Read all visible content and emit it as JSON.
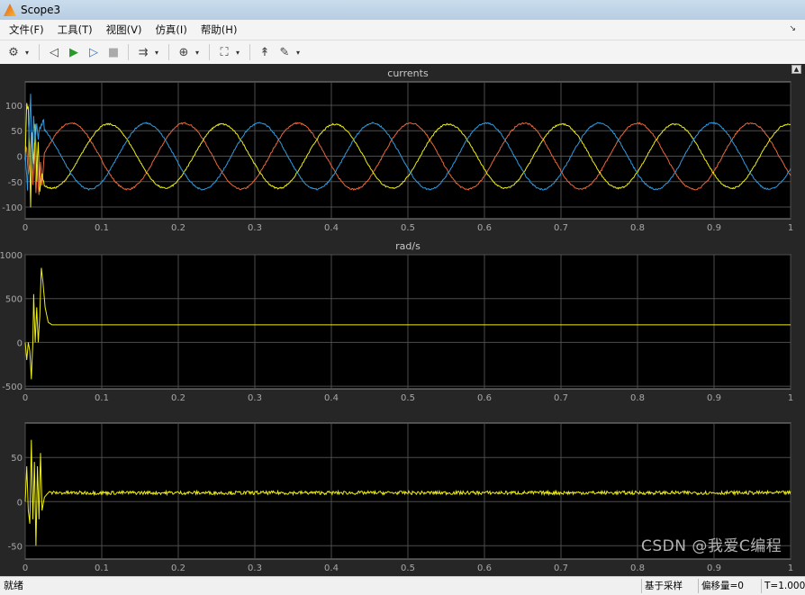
{
  "window": {
    "title": "Scope3"
  },
  "menu": [
    "文件(F)",
    "工具(T)",
    "视图(V)",
    "仿真(I)",
    "帮助(H)"
  ],
  "toolbar": [
    {
      "icon": "gear-icon",
      "glyph": "⚙",
      "dropdown": true
    },
    {
      "icon": "step-back-icon",
      "glyph": "◁",
      "dropdown": false
    },
    {
      "icon": "run-icon",
      "glyph": "▶",
      "dropdown": false
    },
    {
      "icon": "step-forward-icon",
      "glyph": "▷",
      "dropdown": false
    },
    {
      "icon": "stop-icon",
      "glyph": "■",
      "dropdown": false
    },
    {
      "icon": "signal-selector-icon",
      "glyph": "⇉",
      "dropdown": true
    },
    {
      "icon": "zoom-in-icon",
      "glyph": "⊕",
      "dropdown": true
    },
    {
      "icon": "autoscale-icon",
      "glyph": "⛶",
      "dropdown": true
    },
    {
      "icon": "trigger-icon",
      "glyph": "↟",
      "dropdown": false
    },
    {
      "icon": "measurement-icon",
      "glyph": "✎",
      "dropdown": true
    }
  ],
  "status": {
    "ready": "就绪",
    "fields": [
      "基于采样",
      "偏移量=0",
      "T=1.000"
    ]
  },
  "watermark": "CSDN @我爱C编程",
  "colors": {
    "background": "#262626",
    "plot_bg": "#000000",
    "grid": "#4d4d4d",
    "tick_text": "#a8a8a8",
    "yellow": "#eded1a",
    "orange": "#e8683a",
    "blue": "#2f9be0"
  },
  "chart_data": [
    {
      "type": "line",
      "title": "currents",
      "xlim": [
        0,
        1
      ],
      "ylim": [
        -123,
        146
      ],
      "grid": true,
      "xticks": [
        "0",
        "0.1",
        "0.2",
        "0.3",
        "0.4",
        "0.5",
        "0.6",
        "0.7",
        "0.8",
        "0.9",
        "1"
      ],
      "yticks": [
        -100,
        -50,
        0,
        50,
        100
      ],
      "series": [
        {
          "color": "#e8683a",
          "steady": {
            "amplitude": 65,
            "period": 0.148,
            "peak_t": 0.06
          },
          "transient": [
            [
              0,
              0
            ],
            [
              0.002,
              20
            ],
            [
              0.004,
              -40
            ],
            [
              0.006,
              -10
            ],
            [
              0.008,
              40
            ],
            [
              0.01,
              -60
            ],
            [
              0.012,
              20
            ],
            [
              0.014,
              -70
            ],
            [
              0.016,
              -20
            ],
            [
              0.018,
              -80
            ],
            [
              0.02,
              -20
            ],
            [
              0.022,
              -50
            ],
            [
              0.025,
              -10
            ]
          ]
        },
        {
          "color": "#eded1a",
          "steady": {
            "amplitude": 63,
            "period": 0.148,
            "peak_t": 0.109
          },
          "transient": [
            [
              0,
              0
            ],
            [
              0.002,
              100
            ],
            [
              0.004,
              100
            ],
            [
              0.006,
              -10
            ],
            [
              0.007,
              -95
            ],
            [
              0.009,
              40
            ],
            [
              0.011,
              -20
            ],
            [
              0.013,
              60
            ],
            [
              0.015,
              -40
            ],
            [
              0.017,
              30
            ],
            [
              0.019,
              -60
            ],
            [
              0.021,
              -40
            ],
            [
              0.025,
              -55
            ]
          ]
        },
        {
          "color": "#2f9be0",
          "steady": {
            "amplitude": 65,
            "period": 0.148,
            "peak_t": 0.158
          },
          "transient": [
            [
              0,
              0
            ],
            [
              0.003,
              -60
            ],
            [
              0.005,
              50
            ],
            [
              0.007,
              115
            ],
            [
              0.009,
              -20
            ],
            [
              0.011,
              70
            ],
            [
              0.013,
              20
            ],
            [
              0.015,
              70
            ],
            [
              0.017,
              40
            ],
            [
              0.019,
              65
            ],
            [
              0.021,
              60
            ],
            [
              0.025,
              63
            ]
          ]
        }
      ]
    },
    {
      "type": "line",
      "title": "rad/s",
      "xlim": [
        0,
        1
      ],
      "ylim": [
        -530,
        1000
      ],
      "grid": true,
      "xticks": [
        "0",
        "0.1",
        "0.2",
        "0.3",
        "0.4",
        "0.5",
        "0.6",
        "0.7",
        "0.8",
        "0.9",
        "1"
      ],
      "yticks": [
        -500,
        0,
        500,
        1000
      ],
      "series": [
        {
          "color": "#eded1a",
          "points": [
            [
              0,
              0
            ],
            [
              0.002,
              -200
            ],
            [
              0.004,
              0
            ],
            [
              0.006,
              -100
            ],
            [
              0.008,
              -420
            ],
            [
              0.01,
              0
            ],
            [
              0.011,
              550
            ],
            [
              0.013,
              0
            ],
            [
              0.015,
              400
            ],
            [
              0.017,
              0
            ],
            [
              0.019,
              300
            ],
            [
              0.021,
              850
            ],
            [
              0.023,
              700
            ],
            [
              0.026,
              400
            ],
            [
              0.03,
              230
            ],
            [
              0.035,
              200
            ],
            [
              1,
              200
            ]
          ]
        }
      ]
    },
    {
      "type": "line",
      "title": "",
      "xlim": [
        0,
        1
      ],
      "ylim": [
        -65,
        89
      ],
      "grid": true,
      "xticks": [
        "0",
        "0.1",
        "0.2",
        "0.3",
        "0.4",
        "0.5",
        "0.6",
        "0.7",
        "0.8",
        "0.9",
        "1"
      ],
      "yticks": [
        -50,
        0,
        50
      ],
      "series": [
        {
          "color": "#eded1a",
          "points": [
            [
              0,
              0
            ],
            [
              0.002,
              40
            ],
            [
              0.004,
              -10
            ],
            [
              0.006,
              -25
            ],
            [
              0.008,
              70
            ],
            [
              0.01,
              -20
            ],
            [
              0.012,
              45
            ],
            [
              0.014,
              -50
            ],
            [
              0.016,
              40
            ],
            [
              0.018,
              -20
            ],
            [
              0.02,
              55
            ],
            [
              0.022,
              -10
            ],
            [
              0.025,
              5
            ],
            [
              0.03,
              10
            ],
            [
              1,
              10
            ]
          ],
          "noise": 2
        }
      ]
    }
  ]
}
